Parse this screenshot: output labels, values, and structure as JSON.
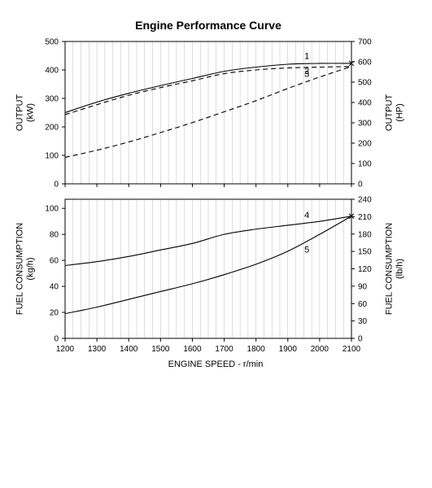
{
  "chart_data": {
    "type": "line",
    "title": "Engine Performance Curve",
    "xlabel": "ENGINE SPEED - r/min",
    "xlim": [
      1200,
      2100
    ],
    "xticks": [
      1200,
      1300,
      1400,
      1500,
      1600,
      1700,
      1800,
      1900,
      2000,
      2100
    ],
    "panels": [
      {
        "id": "output",
        "ylabel_left": "OUTPUT\n(kW)",
        "ylabel_right": "OUTPUT\n(HP)",
        "ylim_left": [
          0,
          500
        ],
        "yticks_left": [
          0,
          100,
          200,
          300,
          400,
          500
        ],
        "ylim_right": [
          0,
          700
        ],
        "yticks_right": [
          0,
          100,
          200,
          300,
          400,
          500,
          600,
          700
        ],
        "grid": "x-minor",
        "series": [
          {
            "name": "1",
            "dash": "solid",
            "x": [
              1200,
              1300,
              1400,
              1500,
              1600,
              1700,
              1800,
              1900,
              2000,
              2100
            ],
            "values": [
              250,
              287,
              318,
              345,
              370,
              395,
              410,
              420,
              423,
              423
            ]
          },
          {
            "name": "2",
            "dash": "dashed",
            "x": [
              1200,
              1300,
              1400,
              1500,
              1600,
              1700,
              1800,
              1900,
              2000,
              2100
            ],
            "values": [
              243,
              278,
              311,
              338,
              362,
              387,
              400,
              407,
              410,
              412
            ]
          },
          {
            "name": "3",
            "dash": "dashed",
            "x": [
              1200,
              1300,
              1400,
              1500,
              1600,
              1700,
              1800,
              1900,
              2000,
              2100
            ],
            "values": [
              93,
              118,
              147,
              180,
              215,
              253,
              292,
              335,
              375,
              412
            ]
          }
        ]
      },
      {
        "id": "fuel",
        "ylabel_left": "FUEL CONSUMPTION\n(kg/h)",
        "ylabel_right": "FUEL CONSUMPTION\n(lb/h)",
        "ylim_left": [
          0,
          107
        ],
        "yticks_left": [
          0,
          20,
          40,
          60,
          80,
          100
        ],
        "ylim_right": [
          0,
          240
        ],
        "yticks_right": [
          0,
          30,
          60,
          90,
          120,
          150,
          180,
          210,
          240
        ],
        "grid": "x-minor",
        "series": [
          {
            "name": "4",
            "dash": "solid",
            "x": [
              1200,
              1300,
              1400,
              1500,
              1600,
              1700,
              1800,
              1900,
              2000,
              2100
            ],
            "values": [
              56,
              59,
              63,
              68,
              73,
              80,
              84,
              87,
              90,
              94
            ]
          },
          {
            "name": "5",
            "dash": "solid",
            "x": [
              1200,
              1300,
              1400,
              1500,
              1600,
              1700,
              1800,
              1900,
              2000,
              2100
            ],
            "values": [
              19,
              24,
              30,
              36,
              42,
              49,
              57,
              67,
              80,
              94
            ]
          }
        ]
      }
    ],
    "end_marker": "x",
    "colors": {
      "line": "#000000",
      "frame": "#000000",
      "grid": "#bbbbbb"
    }
  }
}
